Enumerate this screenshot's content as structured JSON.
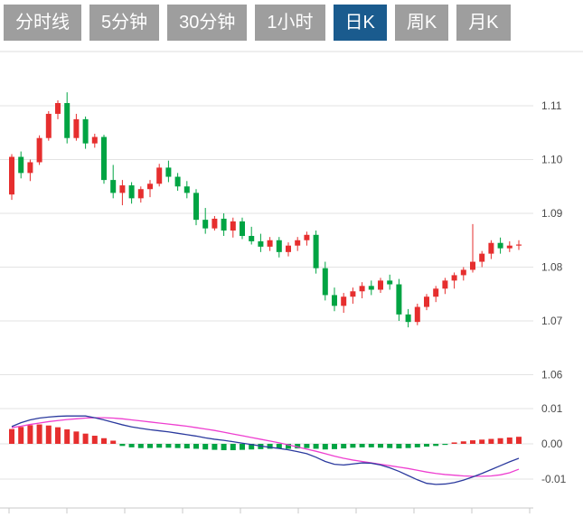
{
  "tabs": [
    {
      "label": "分时线",
      "active": false
    },
    {
      "label": "5分钟",
      "active": false
    },
    {
      "label": "30分钟",
      "active": false
    },
    {
      "label": "1小时",
      "active": false
    },
    {
      "label": "日K",
      "active": true
    },
    {
      "label": "周K",
      "active": false
    },
    {
      "label": "月K",
      "active": false
    }
  ],
  "colors": {
    "up": "#e62e2e",
    "down": "#00a443",
    "dif_line": "#2b3a9e",
    "dea_line": "#ee3fd0",
    "tab_bg": "#9e9e9e",
    "tab_active_bg": "#1a5b8e",
    "grid": "#e3e3e3",
    "axis_text": "#4a4a4a"
  },
  "chart_data": {
    "type": "candlestick",
    "title": "",
    "timeframe_selected": "日K",
    "panels": [
      "price",
      "macd"
    ],
    "y_axis": {
      "range": [
        1.06,
        1.12
      ],
      "ticks": [
        {
          "label": "1.11",
          "value": 1.11
        },
        {
          "label": "1.10",
          "value": 1.1
        },
        {
          "label": "1.09",
          "value": 1.09
        },
        {
          "label": "1.08",
          "value": 1.08
        },
        {
          "label": "1.07",
          "value": 1.07
        },
        {
          "label": "1.06",
          "value": 1.06
        }
      ]
    },
    "macd_axis": {
      "ticks": [
        {
          "label": "0.01",
          "value": 0.01
        },
        {
          "label": "0.00",
          "value": 0.0
        },
        {
          "label": "-0.01",
          "value": -0.01
        }
      ]
    },
    "candles": [
      [
        1.0935,
        1.101,
        1.0925,
        1.1005
      ],
      [
        1.1005,
        1.1015,
        1.0965,
        1.0975
      ],
      [
        1.0975,
        1.1,
        1.096,
        1.0995
      ],
      [
        1.0995,
        1.1045,
        1.099,
        1.104
      ],
      [
        1.104,
        1.109,
        1.1035,
        1.1085
      ],
      [
        1.1085,
        1.111,
        1.1075,
        1.1105
      ],
      [
        1.1105,
        1.1125,
        1.103,
        1.104
      ],
      [
        1.104,
        1.1085,
        1.1035,
        1.1075
      ],
      [
        1.1075,
        1.108,
        1.102,
        1.103
      ],
      [
        1.103,
        1.1048,
        1.1022,
        1.1042
      ],
      [
        1.1042,
        1.1046,
        1.0955,
        1.0962
      ],
      [
        1.0962,
        1.099,
        1.0928,
        1.0938
      ],
      [
        1.0938,
        1.0962,
        1.0915,
        1.0952
      ],
      [
        1.0952,
        1.0958,
        1.0918,
        1.0928
      ],
      [
        1.0928,
        1.095,
        1.092,
        1.0945
      ],
      [
        1.0945,
        1.0962,
        1.093,
        1.0955
      ],
      [
        1.0955,
        1.0992,
        1.095,
        1.0985
      ],
      [
        1.0985,
        1.0998,
        1.0958,
        1.0968
      ],
      [
        1.0968,
        1.0975,
        1.0942,
        1.095
      ],
      [
        1.095,
        1.096,
        1.0928,
        1.0938
      ],
      [
        1.0938,
        1.0945,
        1.0878,
        1.0888
      ],
      [
        1.0888,
        1.091,
        1.0862,
        1.0872
      ],
      [
        1.0872,
        1.0895,
        1.0868,
        1.089
      ],
      [
        1.089,
        1.09,
        1.0858,
        1.0868
      ],
      [
        1.0868,
        1.0892,
        1.0855,
        1.0885
      ],
      [
        1.0885,
        1.0892,
        1.0852,
        1.0858
      ],
      [
        1.0858,
        1.0875,
        1.0842,
        1.0848
      ],
      [
        1.0848,
        1.0862,
        1.0828,
        1.0838
      ],
      [
        1.0838,
        1.0856,
        1.083,
        1.085
      ],
      [
        1.085,
        1.0856,
        1.0818,
        1.0828
      ],
      [
        1.0828,
        1.0846,
        1.082,
        1.084
      ],
      [
        1.084,
        1.0856,
        1.083,
        1.085
      ],
      [
        1.085,
        1.0866,
        1.084,
        1.086
      ],
      [
        1.086,
        1.0868,
        1.0788,
        1.0798
      ],
      [
        1.0798,
        1.081,
        1.0738,
        1.0748
      ],
      [
        1.0748,
        1.0762,
        1.0718,
        1.0728
      ],
      [
        1.0728,
        1.0752,
        1.0715,
        1.0745
      ],
      [
        1.0745,
        1.0762,
        1.0732,
        1.0755
      ],
      [
        1.0755,
        1.0772,
        1.0742,
        1.0765
      ],
      [
        1.0765,
        1.0775,
        1.0748,
        1.0758
      ],
      [
        1.0758,
        1.078,
        1.0752,
        1.0775
      ],
      [
        1.0775,
        1.0786,
        1.0758,
        1.0768
      ],
      [
        1.0768,
        1.0778,
        1.07,
        1.0712
      ],
      [
        1.0712,
        1.0722,
        1.0688,
        1.0698
      ],
      [
        1.0698,
        1.0732,
        1.0692,
        1.0726
      ],
      [
        1.0726,
        1.075,
        1.072,
        1.0745
      ],
      [
        1.0745,
        1.0765,
        1.0735,
        1.076
      ],
      [
        1.076,
        1.078,
        1.075,
        1.0775
      ],
      [
        1.0775,
        1.079,
        1.076,
        1.0785
      ],
      [
        1.0785,
        1.08,
        1.0775,
        1.0795
      ],
      [
        1.0795,
        1.088,
        1.079,
        1.081
      ],
      [
        1.081,
        1.083,
        1.08,
        1.0825
      ],
      [
        1.0825,
        1.085,
        1.0815,
        1.0845
      ],
      [
        1.0845,
        1.0855,
        1.0825,
        1.0835
      ],
      [
        1.0835,
        1.0848,
        1.0828,
        1.084
      ],
      [
        1.084,
        1.085,
        1.0832,
        1.0842
      ]
    ],
    "macd": {
      "histogram": [
        0.0042,
        0.0048,
        0.0053,
        0.0055,
        0.0052,
        0.0047,
        0.0041,
        0.0035,
        0.0029,
        0.0023,
        0.0016,
        0.0009,
        -0.0006,
        -0.001,
        -0.0012,
        -0.0012,
        -0.0011,
        -0.0011,
        -0.0012,
        -0.0013,
        -0.0014,
        -0.0016,
        -0.0017,
        -0.0018,
        -0.0018,
        -0.0017,
        -0.0016,
        -0.0015,
        -0.0014,
        -0.0013,
        -0.0014,
        -0.0013,
        -0.0012,
        -0.0014,
        -0.0016,
        -0.0015,
        -0.0013,
        -0.0011,
        -0.001,
        -0.001,
        -0.0011,
        -0.0012,
        -0.0013,
        -0.0012,
        -0.001,
        -0.0008,
        -0.0006,
        -0.0003,
        0.0004,
        0.0007,
        0.001,
        0.0012,
        0.0014,
        0.0016,
        0.0018,
        0.002
      ],
      "dif": [
        0.0049,
        0.006,
        0.0068,
        0.0073,
        0.0076,
        0.0078,
        0.0079,
        0.0079,
        0.0079,
        0.0074,
        0.0068,
        0.0061,
        0.0054,
        0.0048,
        0.0044,
        0.004,
        0.0037,
        0.0034,
        0.003,
        0.0026,
        0.0022,
        0.0017,
        0.0013,
        0.001,
        0.0006,
        0.0002,
        -0.0002,
        -0.0006,
        -0.001,
        -0.0013,
        -0.0017,
        -0.0022,
        -0.0028,
        -0.0038,
        -0.005,
        -0.0058,
        -0.006,
        -0.0057,
        -0.0054,
        -0.0055,
        -0.006,
        -0.0068,
        -0.0078,
        -0.009,
        -0.0102,
        -0.0112,
        -0.0115,
        -0.0114,
        -0.011,
        -0.0103,
        -0.0094,
        -0.0084,
        -0.0073,
        -0.0062,
        -0.0051,
        -0.0041
      ],
      "dea": [
        0.0046,
        0.005,
        0.0055,
        0.0059,
        0.0063,
        0.0066,
        0.0069,
        0.0071,
        0.0073,
        0.0074,
        0.0074,
        0.0073,
        0.0071,
        0.0068,
        0.0065,
        0.0062,
        0.0059,
        0.0056,
        0.0053,
        0.005,
        0.0046,
        0.0042,
        0.0038,
        0.0033,
        0.0028,
        0.0023,
        0.0018,
        0.0013,
        0.0008,
        0.0003,
        -0.0003,
        -0.0009,
        -0.0015,
        -0.0021,
        -0.0028,
        -0.0035,
        -0.0041,
        -0.0046,
        -0.005,
        -0.0054,
        -0.0058,
        -0.0062,
        -0.0066,
        -0.007,
        -0.0075,
        -0.008,
        -0.0084,
        -0.0087,
        -0.0089,
        -0.0091,
        -0.0092,
        -0.0092,
        -0.0091,
        -0.0088,
        -0.0082,
        -0.0072
      ]
    }
  }
}
